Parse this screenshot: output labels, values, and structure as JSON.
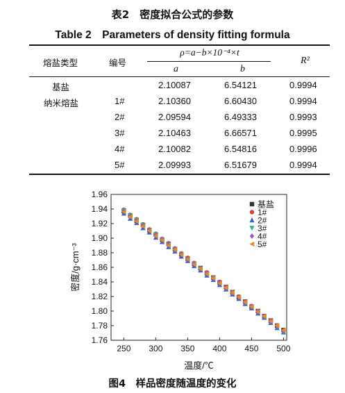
{
  "table": {
    "caption_cn": "表2　密度拟合公式的参数",
    "caption_en": "Table 2　Parameters of density fitting formula",
    "header": {
      "type": "熔盐类型",
      "id": "编号",
      "formula": "ρ=a−b×10⁻⁴×t",
      "a": "a",
      "b": "b",
      "r2": "R²"
    },
    "rows": [
      {
        "type": "基盐",
        "id": "",
        "a": "2.10087",
        "b": "6.54121",
        "r2": "0.9994"
      },
      {
        "type": "纳米熔盐",
        "id": "1#",
        "a": "2.10360",
        "b": "6.60430",
        "r2": "0.9994"
      },
      {
        "type": "",
        "id": "2#",
        "a": "2.09594",
        "b": "6.49333",
        "r2": "0.9993"
      },
      {
        "type": "",
        "id": "3#",
        "a": "2.10463",
        "b": "6.66571",
        "r2": "0.9995"
      },
      {
        "type": "",
        "id": "4#",
        "a": "2.10082",
        "b": "6.54816",
        "r2": "0.9996"
      },
      {
        "type": "",
        "id": "5#",
        "a": "2.09993",
        "b": "6.51679",
        "r2": "0.9994"
      }
    ]
  },
  "figure": {
    "caption": "图4　样品密度随温度的变化"
  },
  "chart_data": {
    "type": "scatter",
    "xlabel": "温度/℃",
    "ylabel": "密度/g·cm⁻³",
    "xlim": [
      230,
      505
    ],
    "ylim": [
      1.76,
      1.96
    ],
    "xticks": [
      250,
      300,
      350,
      400,
      450,
      500
    ],
    "yticks": [
      1.76,
      1.78,
      1.8,
      1.82,
      1.84,
      1.86,
      1.88,
      1.9,
      1.92,
      1.94,
      1.96
    ],
    "grid": false,
    "legend_position": "top-right",
    "x": [
      250,
      260,
      270,
      280,
      290,
      300,
      310,
      320,
      330,
      340,
      350,
      360,
      370,
      380,
      390,
      400,
      410,
      420,
      430,
      440,
      450,
      460,
      470,
      480,
      490,
      500
    ],
    "series": [
      {
        "name": "基盐",
        "marker": "square",
        "color": "#333333",
        "values": [
          1.937,
          1.931,
          1.924,
          1.918,
          1.911,
          1.905,
          1.898,
          1.892,
          1.885,
          1.878,
          1.872,
          1.865,
          1.859,
          1.852,
          1.846,
          1.839,
          1.833,
          1.826,
          1.819,
          1.813,
          1.806,
          1.8,
          1.793,
          1.787,
          1.78,
          1.774
        ]
      },
      {
        "name": "1#",
        "marker": "circle",
        "color": "#e03c3c",
        "values": [
          1.939,
          1.932,
          1.926,
          1.919,
          1.912,
          1.906,
          1.899,
          1.893,
          1.886,
          1.879,
          1.873,
          1.866,
          1.859,
          1.853,
          1.846,
          1.84,
          1.833,
          1.826,
          1.82,
          1.813,
          1.807,
          1.8,
          1.793,
          1.787,
          1.78,
          1.773
        ]
      },
      {
        "name": "2#",
        "marker": "triangle-up",
        "color": "#3b5ec9",
        "values": [
          1.934,
          1.927,
          1.921,
          1.914,
          1.908,
          1.901,
          1.895,
          1.888,
          1.882,
          1.875,
          1.869,
          1.862,
          1.856,
          1.849,
          1.843,
          1.836,
          1.83,
          1.823,
          1.817,
          1.81,
          1.804,
          1.797,
          1.791,
          1.784,
          1.777,
          1.771
        ]
      },
      {
        "name": "3#",
        "marker": "triangle-down",
        "color": "#2bb673",
        "values": [
          1.938,
          1.931,
          1.925,
          1.918,
          1.911,
          1.905,
          1.898,
          1.891,
          1.885,
          1.878,
          1.871,
          1.865,
          1.858,
          1.851,
          1.845,
          1.838,
          1.831,
          1.825,
          1.818,
          1.811,
          1.805,
          1.798,
          1.791,
          1.785,
          1.778,
          1.771
        ]
      },
      {
        "name": "4#",
        "marker": "diamond",
        "color": "#9b59d0",
        "values": [
          1.937,
          1.93,
          1.924,
          1.917,
          1.911,
          1.904,
          1.898,
          1.891,
          1.884,
          1.878,
          1.871,
          1.865,
          1.858,
          1.852,
          1.845,
          1.839,
          1.832,
          1.825,
          1.819,
          1.812,
          1.806,
          1.799,
          1.793,
          1.786,
          1.78,
          1.773
        ]
      },
      {
        "name": "5#",
        "marker": "triangle-left",
        "color": "#e08a2c",
        "values": [
          1.936,
          1.929,
          1.923,
          1.916,
          1.91,
          1.903,
          1.897,
          1.89,
          1.884,
          1.877,
          1.871,
          1.864,
          1.858,
          1.851,
          1.845,
          1.838,
          1.832,
          1.825,
          1.819,
          1.812,
          1.806,
          1.799,
          1.793,
          1.786,
          1.78,
          1.774
        ]
      }
    ]
  }
}
